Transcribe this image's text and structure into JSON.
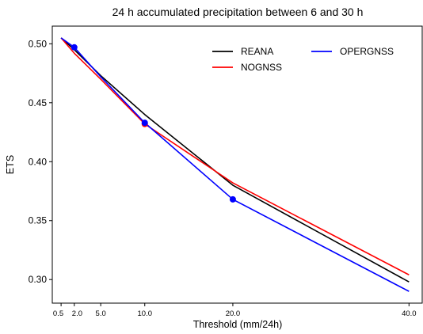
{
  "chart_data": {
    "type": "line",
    "title": "24 h accumulated precipitation between 6 and 30 h",
    "xlabel": "Threshold (mm/24h)",
    "ylabel": "ETS",
    "xlim": [
      -0.5,
      41.5
    ],
    "ylim": [
      0.28,
      0.515
    ],
    "xticks": [
      0.5,
      2.0,
      5.0,
      10.0,
      20.0,
      40.0
    ],
    "xtick_labels": [
      "0.5",
      "2.0",
      "5.0",
      "10.0",
      "20.0",
      "40.0"
    ],
    "yticks": [
      0.3,
      0.35,
      0.4,
      0.45,
      0.5
    ],
    "ytick_labels": [
      "0.30",
      "0.35",
      "0.40",
      "0.45",
      "0.50"
    ],
    "grid": false,
    "legend_position": "top-right",
    "series": [
      {
        "name": "REANA",
        "color": "#000000",
        "x": [
          0.5,
          2.0,
          5.0,
          10.0,
          20.0,
          40.0
        ],
        "y": [
          0.505,
          0.495,
          0.473,
          0.44,
          0.38,
          0.298
        ],
        "markers": []
      },
      {
        "name": "NOGNSS",
        "color": "#ff0000",
        "x": [
          0.5,
          2.0,
          5.0,
          10.0,
          20.0,
          40.0
        ],
        "y": [
          0.505,
          0.492,
          0.47,
          0.432,
          0.382,
          0.304
        ],
        "markers": [
          10.0
        ]
      },
      {
        "name": "OPERGNSS",
        "color": "#0000ff",
        "x": [
          0.5,
          2.0,
          5.0,
          10.0,
          20.0,
          40.0
        ],
        "y": [
          0.505,
          0.497,
          0.472,
          0.433,
          0.368,
          0.29
        ],
        "markers": [
          2.0,
          10.0,
          20.0
        ]
      }
    ]
  }
}
